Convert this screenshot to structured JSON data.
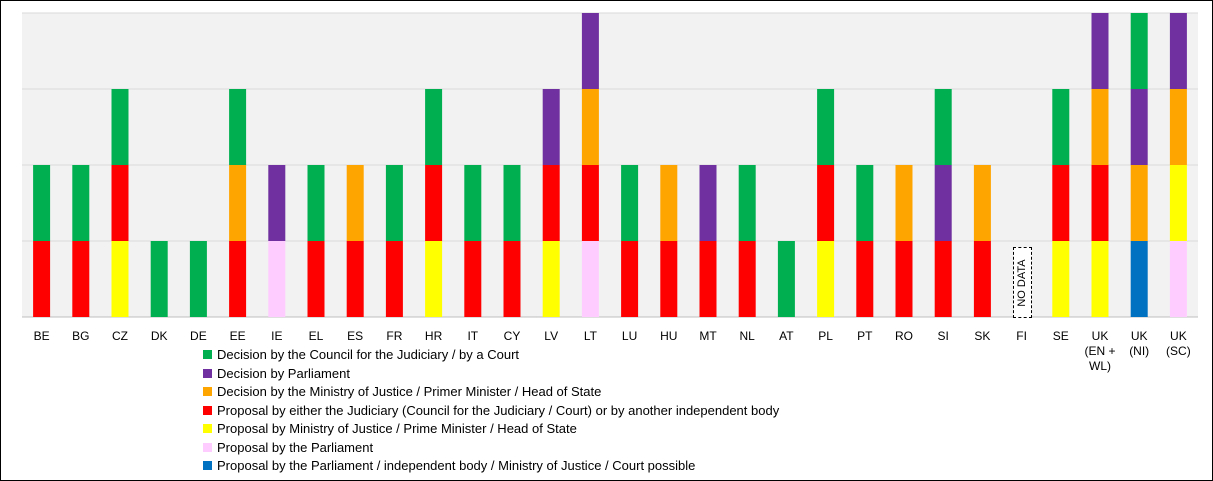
{
  "chart_data": {
    "type": "stacked_bar",
    "categories": [
      "BE",
      "BG",
      "CZ",
      "DK",
      "DE",
      "EE",
      "IE",
      "EL",
      "ES",
      "FR",
      "HR",
      "IT",
      "CY",
      "LV",
      "LT",
      "LU",
      "HU",
      "MT",
      "NL",
      "AT",
      "PL",
      "PT",
      "RO",
      "SI",
      "SK",
      "FI",
      "SE",
      "UK (EN + WL)",
      "UK (NI)",
      "UK (SC)"
    ],
    "series": [
      {
        "name": "Decision by the Council for the Judiciary / by a Court",
        "color": "#00b050",
        "values": [
          1,
          1,
          1,
          1,
          1,
          1,
          0,
          1,
          0,
          1,
          1,
          1,
          1,
          0,
          0,
          1,
          0,
          0,
          1,
          1,
          1,
          1,
          0,
          1,
          0,
          0,
          1,
          0,
          1,
          0
        ]
      },
      {
        "name": "Decision by Parliament",
        "color": "#7030a0",
        "values": [
          0,
          0,
          0,
          0,
          0,
          0,
          1,
          0,
          0,
          0,
          0,
          0,
          0,
          1,
          1,
          0,
          0,
          1,
          0,
          0,
          0,
          0,
          0,
          1,
          0,
          0,
          0,
          1,
          1,
          1
        ]
      },
      {
        "name": "Decision by the Ministry of Justice / Primer Minister / Head of State",
        "color": "#ffa500",
        "values": [
          0,
          0,
          0,
          0,
          0,
          1,
          0,
          0,
          1,
          0,
          0,
          0,
          0,
          0,
          1,
          0,
          1,
          0,
          0,
          0,
          0,
          0,
          1,
          0,
          1,
          0,
          0,
          1,
          1,
          1
        ]
      },
      {
        "name": "Proposal by either the Judiciary (Council for the Judiciary / Court) or by another independent body",
        "color": "#ff0000",
        "values": [
          1,
          1,
          1,
          0,
          0,
          1,
          0,
          1,
          1,
          1,
          1,
          1,
          1,
          1,
          1,
          1,
          1,
          1,
          1,
          0,
          1,
          1,
          1,
          1,
          1,
          0,
          1,
          1,
          0,
          0
        ]
      },
      {
        "name": "Proposal by Ministry of Justice / Prime Minister / Head of State",
        "color": "#ffff00",
        "values": [
          0,
          0,
          1,
          0,
          0,
          0,
          0,
          0,
          0,
          0,
          1,
          0,
          0,
          1,
          0,
          0,
          0,
          0,
          0,
          0,
          1,
          0,
          0,
          0,
          0,
          0,
          1,
          1,
          0,
          1
        ]
      },
      {
        "name": "Proposal by the Parliament",
        "color": "#ffccff",
        "values": [
          0,
          0,
          0,
          0,
          0,
          0,
          1,
          0,
          0,
          0,
          0,
          0,
          0,
          0,
          1,
          0,
          0,
          0,
          0,
          0,
          0,
          0,
          0,
          0,
          0,
          0,
          0,
          0,
          0,
          1
        ]
      },
      {
        "name": "Proposal by the Parliament / independent body / Ministry of Justice / Court possible",
        "color": "#0070c0",
        "values": [
          0,
          0,
          0,
          0,
          0,
          0,
          0,
          0,
          0,
          0,
          0,
          0,
          0,
          0,
          0,
          0,
          0,
          0,
          0,
          0,
          0,
          0,
          0,
          0,
          0,
          0,
          0,
          0,
          1,
          0
        ]
      }
    ],
    "annotations": [
      {
        "text": "NO DATA",
        "category": "FI"
      }
    ],
    "ylim": [
      0,
      4
    ],
    "yticks": [
      0,
      1,
      2,
      3,
      4
    ],
    "grid": true
  }
}
